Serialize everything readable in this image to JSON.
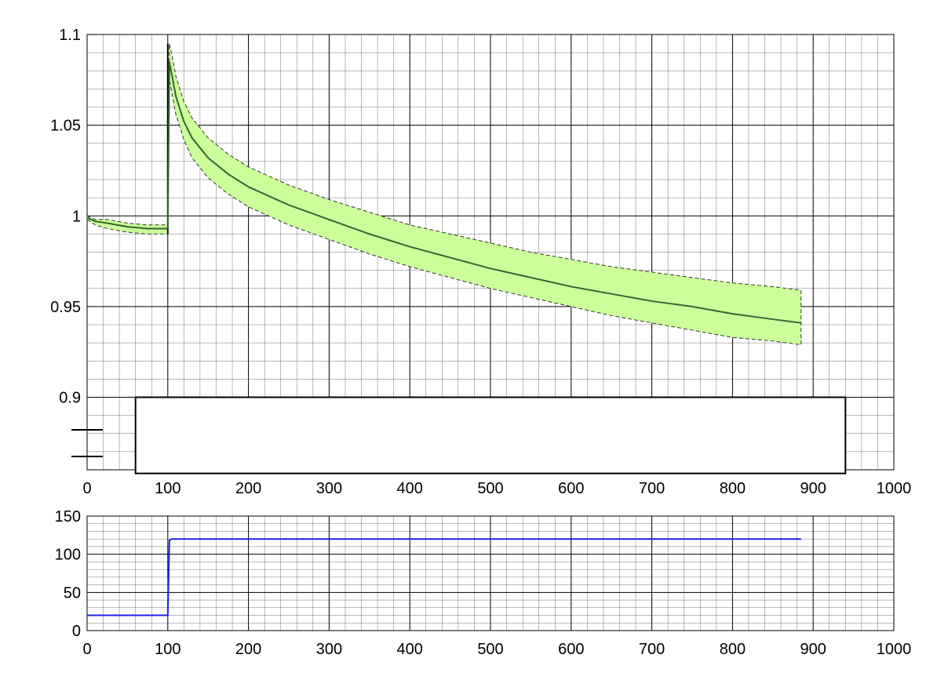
{
  "chart_data": [
    {
      "type": "line",
      "title": "",
      "xlabel": "",
      "ylabel": "",
      "xlim": [
        0,
        1000
      ],
      "ylim": [
        0.86,
        1.1
      ],
      "grid": true,
      "x_ticks": [
        0,
        100,
        200,
        300,
        400,
        500,
        600,
        700,
        800,
        900,
        1000
      ],
      "x_tick_labels": [
        "0",
        "100",
        "200",
        "300",
        "400",
        "500",
        "600",
        "700",
        "800",
        "900",
        "1000"
      ],
      "y_ticks": [
        0.9,
        0.95,
        1.0,
        1.05,
        1.1
      ],
      "y_tick_labels": [
        "0.9",
        "0.95",
        "1",
        "1.05",
        "1.1"
      ],
      "legend": {
        "placement": "bottom",
        "entries": []
      },
      "colors": {
        "band_fill": "#ccff99",
        "mean_line": "#336633",
        "band_edge": "#333333"
      },
      "series": [
        {
          "x": [
            0,
            10,
            25,
            50,
            75,
            100,
            102,
            105,
            110,
            120,
            130,
            150,
            175,
            200,
            250,
            300,
            350,
            400,
            450,
            500,
            550,
            600,
            650,
            700,
            750,
            800,
            850,
            885
          ],
          "mean": [
            0.999,
            0.997,
            0.996,
            0.994,
            0.993,
            0.993,
            1.085,
            1.078,
            1.066,
            1.052,
            1.043,
            1.032,
            1.023,
            1.016,
            1.006,
            0.998,
            0.99,
            0.983,
            0.977,
            0.971,
            0.966,
            0.961,
            0.957,
            0.953,
            0.95,
            0.946,
            0.943,
            0.941
          ],
          "upper": [
            1.0,
            0.998,
            0.998,
            0.996,
            0.995,
            0.995,
            1.095,
            1.089,
            1.077,
            1.063,
            1.054,
            1.043,
            1.034,
            1.027,
            1.017,
            1.009,
            1.002,
            0.995,
            0.99,
            0.985,
            0.98,
            0.976,
            0.972,
            0.969,
            0.966,
            0.963,
            0.961,
            0.959
          ],
          "lower": [
            0.998,
            0.995,
            0.993,
            0.991,
            0.99,
            0.99,
            1.075,
            1.068,
            1.056,
            1.042,
            1.032,
            1.021,
            1.012,
            1.005,
            0.995,
            0.987,
            0.979,
            0.972,
            0.966,
            0.96,
            0.955,
            0.95,
            0.945,
            0.941,
            0.937,
            0.933,
            0.931,
            0.929
          ]
        }
      ],
      "legend_box": {
        "x_start": 60,
        "x_end": 940,
        "y_top": 0.9,
        "y_bottom": 0.858
      }
    },
    {
      "type": "line",
      "title": "",
      "xlabel": "",
      "ylabel": "",
      "xlim": [
        0,
        1000
      ],
      "ylim": [
        0,
        150
      ],
      "grid": true,
      "x_ticks": [
        0,
        100,
        200,
        300,
        400,
        500,
        600,
        700,
        800,
        900,
        1000
      ],
      "x_tick_labels": [
        "0",
        "100",
        "200",
        "300",
        "400",
        "500",
        "600",
        "700",
        "800",
        "900",
        "1000"
      ],
      "y_ticks": [
        0,
        50,
        100,
        150
      ],
      "y_tick_labels": [
        "0",
        "50",
        "100",
        "150"
      ],
      "colors": {
        "line": "#1f1fe6"
      },
      "series": [
        {
          "x": [
            0,
            100,
            102,
            105,
            885
          ],
          "values": [
            20,
            20,
            118,
            120,
            120
          ]
        }
      ]
    }
  ]
}
